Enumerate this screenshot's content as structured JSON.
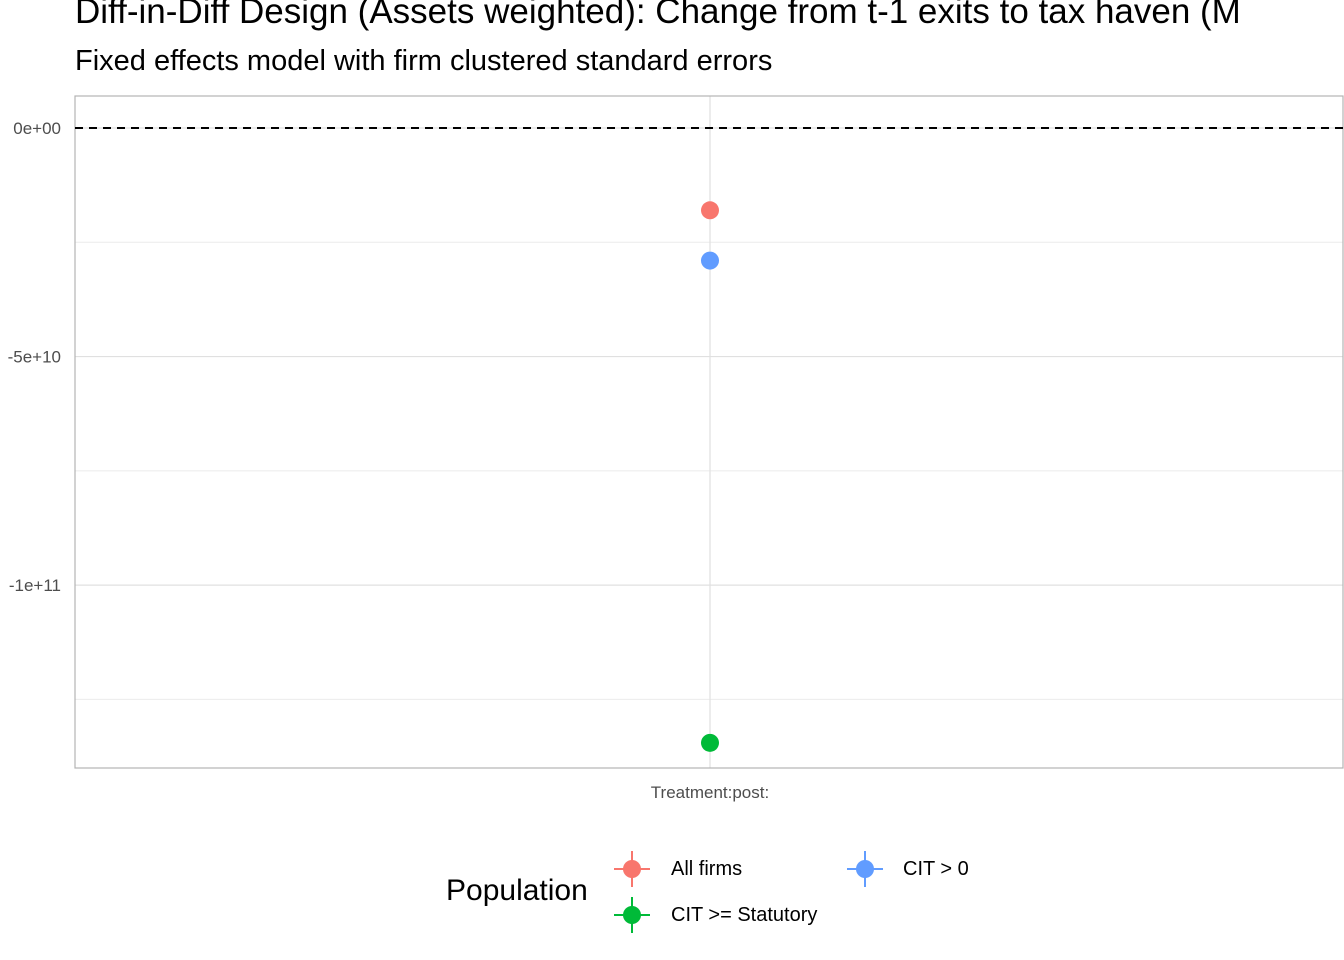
{
  "chart_data": {
    "type": "scatter",
    "title": "Diff-in-Diff Design (Assets weighted): Change from t-1 exits to tax haven (M",
    "subtitle": "Fixed effects model with firm clustered standard errors",
    "xlabel": "",
    "ylabel": "",
    "categories": [
      "Treatment:post:"
    ],
    "ylim": [
      -140000000000.0,
      7000000000.0
    ],
    "y_ticks": [
      {
        "value": 0,
        "label": "0e+00"
      },
      {
        "value": -50000000000.0,
        "label": "-5e+10"
      },
      {
        "value": -100000000000.0,
        "label": "-1e+11"
      }
    ],
    "y_minor_ticks": [
      -25000000000.0,
      -75000000000.0,
      -125000000000.0
    ],
    "reference_line": {
      "value": 0,
      "style": "dashed"
    },
    "grid": true,
    "legend": {
      "title": "Population",
      "position": "bottom"
    },
    "series": [
      {
        "name": "All firms",
        "color": "#F8766D",
        "x": "Treatment:post:",
        "y": -18000000000.0
      },
      {
        "name": "CIT > 0",
        "color": "#619CFF",
        "x": "Treatment:post:",
        "y": -29000000000.0
      },
      {
        "name": "CIT >= Statutory",
        "color": "#00BA38",
        "x": "Treatment:post:",
        "y": -134500000000.0
      }
    ]
  }
}
